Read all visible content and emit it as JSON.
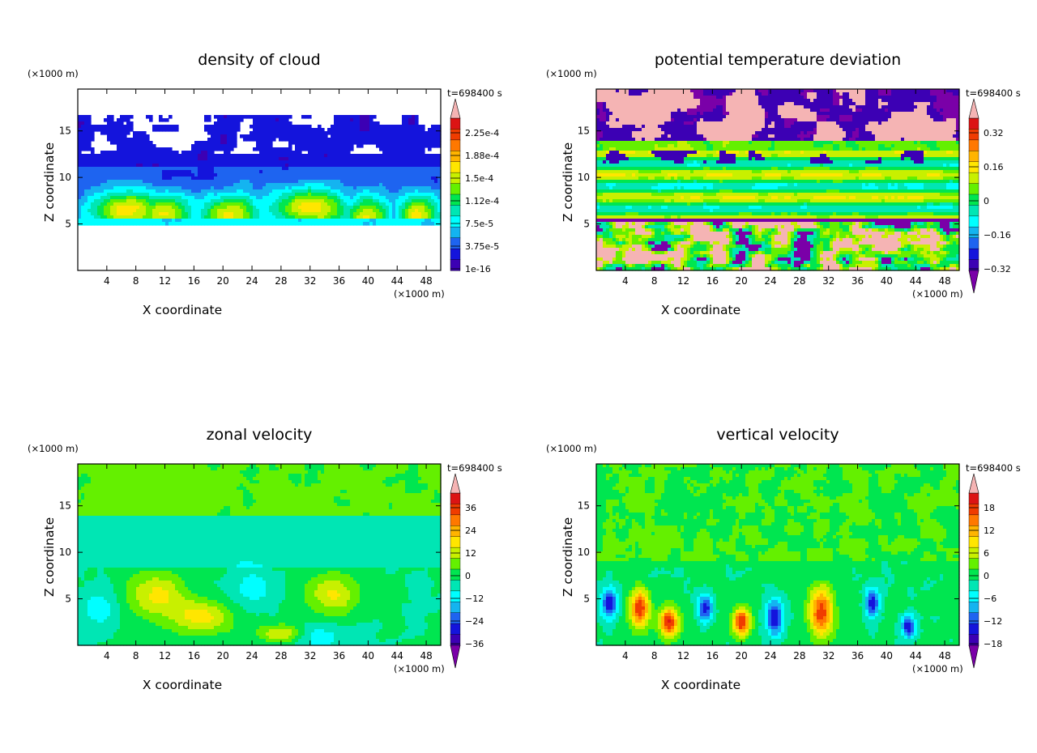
{
  "figure": {
    "x_unit": "(×1000 m)",
    "z_unit": "(×1000 m)",
    "time_label": "t=698400 s",
    "xlabel": "X coordinate",
    "zlabel": "Z coordinate"
  },
  "colors": {
    "scale": [
      "#7a00a8",
      "#3c00b4",
      "#1414dc",
      "#1e64f0",
      "#14b4f0",
      "#00ffff",
      "#00e6b4",
      "#00e650",
      "#64f000",
      "#c8f000",
      "#ffe600",
      "#ffb400",
      "#ff7800",
      "#f03c00",
      "#dc1414",
      "#f5b4b4"
    ],
    "axis": "#000000",
    "background": "#ffffff"
  },
  "chart_data": [
    {
      "type": "heatmap",
      "title": "density of cloud",
      "xlabel": "X coordinate",
      "ylabel": "Z coordinate",
      "xlim": [
        0,
        50
      ],
      "ylim": [
        0,
        19.5
      ],
      "xticks": [
        4,
        8,
        12,
        16,
        20,
        24,
        28,
        32,
        36,
        40,
        44,
        48
      ],
      "yticks": [
        5,
        10,
        15
      ],
      "colorbar": {
        "labels": [
          "2.25e-4",
          "1.88e-4",
          "1.5e-4",
          "1.12e-4",
          "7.5e-5",
          "3.75e-5",
          "1e-16"
        ],
        "values": [
          0.000225,
          0.000188,
          0.00015,
          0.000112,
          7.5e-05,
          3.75e-05,
          1e-16
        ],
        "extend": "max"
      },
      "features": [
        {
          "desc": "cloud layer",
          "z_range": [
            5,
            17
          ],
          "values": "low purple"
        },
        {
          "desc": "cloud peaks",
          "x": [
            7,
            13,
            31,
            36
          ],
          "z": 8,
          "level": "green-yellow"
        }
      ]
    },
    {
      "type": "heatmap",
      "title": "potential temperature deviation",
      "xlabel": "X coordinate",
      "ylabel": "Z coordinate",
      "xlim": [
        0,
        50
      ],
      "ylim": [
        0,
        19.5
      ],
      "xticks": [
        4,
        8,
        12,
        16,
        20,
        24,
        28,
        32,
        36,
        40,
        44,
        48
      ],
      "yticks": [
        5,
        10,
        15
      ],
      "colorbar": {
        "labels": [
          "0.32",
          "0.16",
          "0",
          "−0.16",
          "−0.32"
        ],
        "values": [
          0.32,
          0.16,
          0,
          -0.16,
          -0.32
        ],
        "extend": "both"
      },
      "features": [
        {
          "desc": "strong anomalies above 14 km",
          "z_range": [
            14,
            19.5
          ]
        },
        {
          "desc": "layered stable region",
          "z_range": [
            5.5,
            13
          ]
        },
        {
          "desc": "convective boundary layer",
          "z_range": [
            0,
            5
          ]
        }
      ]
    },
    {
      "type": "heatmap",
      "title": "zonal velocity",
      "xlabel": "X coordinate",
      "ylabel": "Z coordinate",
      "xlim": [
        0,
        50
      ],
      "ylim": [
        0,
        19.5
      ],
      "xticks": [
        4,
        8,
        12,
        16,
        20,
        24,
        28,
        32,
        36,
        40,
        44,
        48
      ],
      "yticks": [
        5,
        10,
        15
      ],
      "colorbar": {
        "labels": [
          "36",
          "24",
          "12",
          "0",
          "−12",
          "−24",
          "−36"
        ],
        "values": [
          36,
          24,
          12,
          0,
          -12,
          -24,
          -36
        ],
        "extend": "both"
      },
      "features": [
        {
          "desc": "near-zero flow",
          "z_range": [
            8,
            19.5
          ]
        },
        {
          "desc": "positive jets",
          "x": [
            12,
            20,
            35
          ],
          "z": [
            3,
            7
          ]
        }
      ]
    },
    {
      "type": "heatmap",
      "title": "vertical velocity",
      "xlabel": "X coordinate",
      "ylabel": "Z coordinate",
      "xlim": [
        0,
        50
      ],
      "ylim": [
        0,
        19.5
      ],
      "xticks": [
        4,
        8,
        12,
        16,
        20,
        24,
        28,
        32,
        36,
        40,
        44,
        48
      ],
      "yticks": [
        5,
        10,
        15
      ],
      "colorbar": {
        "labels": [
          "18",
          "12",
          "6",
          "0",
          "−6",
          "−12",
          "−18"
        ],
        "values": [
          18,
          12,
          6,
          0,
          -6,
          -12,
          -18
        ],
        "extend": "both"
      },
      "features": [
        {
          "desc": "updrafts",
          "x": [
            6,
            11,
            31
          ],
          "z": [
            2,
            6
          ]
        },
        {
          "desc": "downdrafts",
          "x": [
            2,
            15,
            25,
            38,
            43
          ],
          "z": [
            2,
            6
          ]
        }
      ]
    }
  ]
}
